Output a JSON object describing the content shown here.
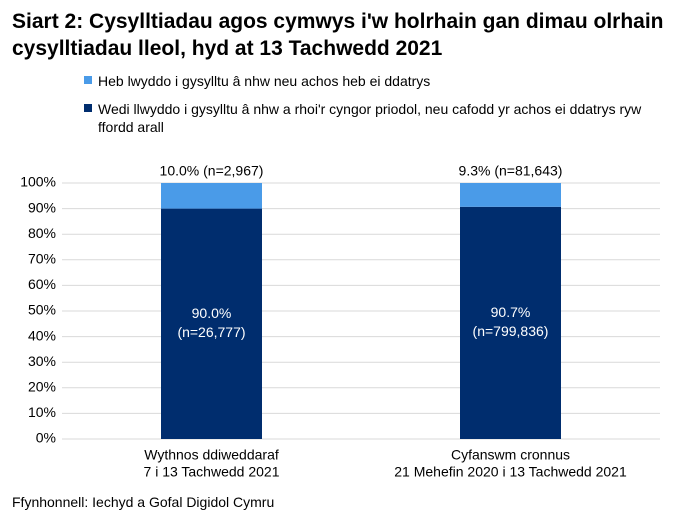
{
  "chart_data": {
    "type": "stacked_bar",
    "title": "Siart 2: Cysylltiadau agos cymwys i'w holrhain gan dimau olrhain cysylltiadau lleol, hyd at 13 Tachwedd 2021",
    "categories": [
      [
        "Wythnos ddiweddaraf",
        "7 i 13 Tachwedd 2021"
      ],
      [
        "Cyfanswm cronnus",
        "21 Mehefin 2020 i 13 Tachwedd 2021"
      ]
    ],
    "series": [
      {
        "name": "Wedi llwyddo i gysylltu â nhw a rhoi'r cyngor priodol, neu cafodd yr achos ei ddatrys ryw ffordd arall",
        "color": "#002d6e",
        "values": [
          90.0,
          90.7
        ],
        "value_labels": [
          [
            "90.0%",
            "(n=26,777)"
          ],
          [
            "90.7%",
            "(n=799,836)"
          ]
        ]
      },
      {
        "name": "Heb lwyddo i gysylltu â nhw neu achos heb ei ddatrys",
        "color": "#4a9be8",
        "values": [
          10.0,
          9.3
        ],
        "value_labels": [
          "10.0% (n=2,967)",
          "9.3% (n=81,643)"
        ]
      }
    ],
    "ylim": [
      0,
      100
    ],
    "yticks": [
      {
        "value": 0,
        "label": "0%"
      },
      {
        "value": 10,
        "label": "10%"
      },
      {
        "value": 20,
        "label": "20%"
      },
      {
        "value": 30,
        "label": "30%"
      },
      {
        "value": 40,
        "label": "40%"
      },
      {
        "value": 50,
        "label": "50%"
      },
      {
        "value": 60,
        "label": "60%"
      },
      {
        "value": 70,
        "label": "70%"
      },
      {
        "value": 80,
        "label": "80%"
      },
      {
        "value": 90,
        "label": "90%"
      },
      {
        "value": 100,
        "label": "100%"
      }
    ],
    "grid": true,
    "source": "Ffynhonnell: Iechyd a Gofal Digidol Cymru"
  }
}
